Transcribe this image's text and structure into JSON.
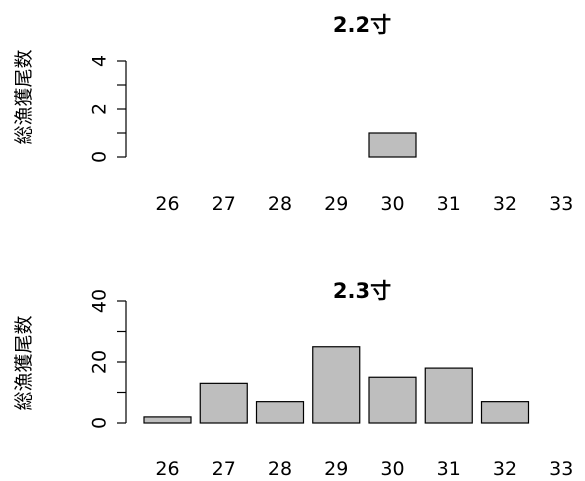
{
  "chart_data": [
    {
      "type": "bar",
      "title": "2.2寸",
      "ylabel": "総漁獲尾数",
      "xlabel": "",
      "categories": [
        "26",
        "27",
        "28",
        "29",
        "30",
        "31",
        "32",
        "33"
      ],
      "values": [
        0,
        0,
        0,
        0,
        1,
        0,
        0,
        0
      ],
      "ylim": [
        0,
        5
      ],
      "yticks": [
        0,
        2,
        4
      ],
      "bar_color": "#bebebe",
      "grid": false
    },
    {
      "type": "bar",
      "title": "2.3寸",
      "ylabel": "総漁獲尾数",
      "xlabel": "",
      "categories": [
        "26",
        "27",
        "28",
        "29",
        "30",
        "31",
        "32",
        "33"
      ],
      "values": [
        2,
        13,
        7,
        25,
        15,
        18,
        7,
        0
      ],
      "ylim": [
        0,
        40
      ],
      "yticks": [
        0,
        20,
        40
      ],
      "bar_color": "#bebebe",
      "grid": false
    }
  ]
}
